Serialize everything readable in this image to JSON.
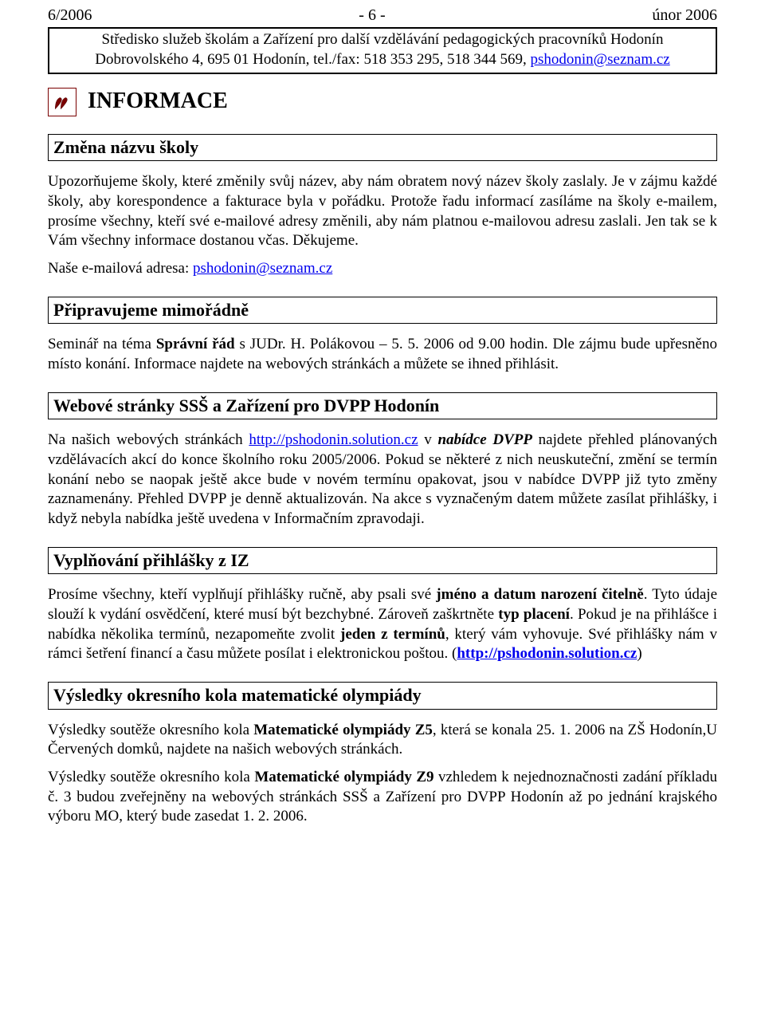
{
  "header": {
    "left": "6/2006",
    "center": "- 6 -",
    "right": "únor 2006",
    "box_line1": "Středisko služeb školám a Zařízení pro další vzdělávání pedagogických pracovníků Hodonín",
    "box_line2_prefix": "Dobrovolského 4, 695 01 Hodonín, tel./fax: 518 353 295, 518 344 569, ",
    "box_email": "pshodonin@seznam.cz"
  },
  "title": "INFORMACE",
  "icon_color": "#7a0000",
  "sections": [
    {
      "heading": "Změna názvu školy",
      "body": [
        {
          "sp": [
            {
              "t": "Upozorňujeme školy, které změnily svůj název, aby nám obratem nový název školy zaslaly. Je v zájmu každé školy, aby korespondence a fakturace byla v pořádku. Protože řadu informací zasíláme na školy e-mailem, prosíme všechny, kteří své e-mailové adresy změnili, aby nám platnou e-mailovou adresu zaslali. Jen tak se k Vám všechny informace dostanou včas. Děkujeme."
            }
          ]
        },
        {
          "sp": [
            {
              "t": "Naše e-mailová adresa: "
            },
            {
              "t": "pshodonin@seznam.cz",
              "link": true
            }
          ]
        }
      ]
    },
    {
      "heading": "Připravujeme mimořádně",
      "body": [
        {
          "sp": [
            {
              "t": "Seminář na téma "
            },
            {
              "t": "Správní řád",
              "bold": true
            },
            {
              "t": " s JUDr. H. Polákovou – 5. 5. 2006 od 9.00 hodin. Dle zájmu bude upřesněno místo konání. Informace najdete na webových stránkách a můžete se ihned přihlásit."
            }
          ]
        }
      ]
    },
    {
      "heading": "Webové stránky SSŠ a Zařízení pro DVPP Hodonín",
      "body": [
        {
          "sp": [
            {
              "t": "Na našich webových stránkách "
            },
            {
              "t": "http://pshodonin.solution.cz",
              "link": true
            },
            {
              "t": " v "
            },
            {
              "t": "nabídce DVPP",
              "bolditalic": true
            },
            {
              "t": " najdete přehled plánovaných vzdělávacích akcí do konce školního roku 2005/2006. Pokud se některé z nich neuskuteční, změní se termín konání nebo se naopak ještě akce bude v novém termínu opakovat, jsou v nabídce DVPP již tyto změny zaznamenány. Přehled DVPP je denně aktualizován. Na akce s vyznačeným datem můžete zasílat přihlášky, i když nebyla nabídka ještě uvedena v Informačním zpravodaji."
            }
          ]
        }
      ]
    },
    {
      "heading": "Vyplňování přihlášky z IZ",
      "body": [
        {
          "sp": [
            {
              "t": "Prosíme všechny, kteří vyplňují přihlášky ručně, aby psali své "
            },
            {
              "t": "jméno a datum narození čitelně",
              "bold": true
            },
            {
              "t": ". Tyto údaje slouží k vydání osvědčení, které musí být bezchybné. Zároveň zaškrtněte "
            },
            {
              "t": "typ placení",
              "bold": true
            },
            {
              "t": ". Pokud je na přihlášce i nabídka několika termínů, nezapomeňte zvolit "
            },
            {
              "t": "jeden z termínů",
              "bold": true
            },
            {
              "t": ", který vám vyhovuje. Své přihlášky nám v rámci šetření financí a času můžete posílat i elektronickou poštou.  ("
            },
            {
              "t": "http://pshodonin.solution.cz",
              "link": true,
              "bold": true
            },
            {
              "t": ")"
            }
          ]
        }
      ]
    },
    {
      "heading": "Výsledky okresního kola matematické olympiády",
      "body": [
        {
          "sp": [
            {
              "t": "Výsledky soutěže okresního kola "
            },
            {
              "t": "Matematické olympiády Z5",
              "bold": true
            },
            {
              "t": ", která se konala 25. 1. 2006 na ZŠ Hodonín,U Červených domků, najdete na našich webových stránkách."
            }
          ]
        },
        {
          "sp": [
            {
              "t": "Výsledky soutěže okresního kola "
            },
            {
              "t": "Matematické olympiády Z9",
              "bold": true
            },
            {
              "t": " vzhledem k nejednoznačnosti zadání příkladu č. 3 budou zveřejněny na webových stránkách SSŠ a Zařízení pro DVPP Hodonín až po jednání  krajského výboru MO, který bude zasedat 1. 2. 2006."
            }
          ]
        }
      ]
    }
  ]
}
